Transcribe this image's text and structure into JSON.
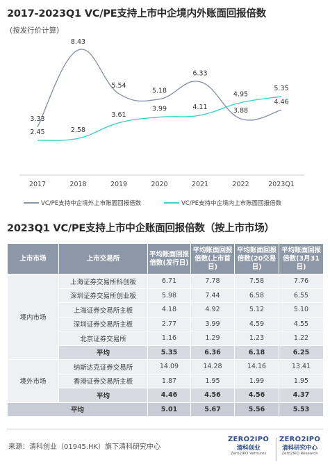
{
  "header": {
    "title": "2017-2023Q1 VC/PE支持上市中企境内外账面回报倍数",
    "subtitle": "(按发行价计算)"
  },
  "chart_data": {
    "type": "line",
    "categories": [
      "2017",
      "2018",
      "2019",
      "2020",
      "2021",
      "2022",
      "2023Q1"
    ],
    "series": [
      {
        "name": "VC/PE支持中企境外上市账面回报倍数",
        "color": "#8a93a8",
        "values": [
          3.33,
          8.43,
          5.54,
          5.18,
          6.33,
          3.88,
          4.46
        ]
      },
      {
        "name": "VC/PE支持中企境内上市账面回报倍数",
        "color": "#3fd4c6",
        "values": [
          2.45,
          2.58,
          3.61,
          3.99,
          4.11,
          4.95,
          5.35
        ]
      }
    ],
    "legend_position": "bottom",
    "grid": false
  },
  "table": {
    "title": "2023Q1 VC/PE支持上市中企账面回报倍数（按上市市场）",
    "headers": [
      "上市市场",
      "上市交易所",
      "平均账面回报倍数(发行日)",
      "平均账面回报倍数(上市首日)",
      "平均账面回报倍数(20交易日)",
      "平均账面回报倍数(3月31日)"
    ],
    "domestic": {
      "market": "境内市场",
      "rows": [
        {
          "exchange": "上海证券交易所科创板",
          "v": [
            "6.71",
            "7.78",
            "7.58",
            "7.76"
          ]
        },
        {
          "exchange": "深圳证券交易所创业板",
          "v": [
            "5.98",
            "7.44",
            "6.58",
            "6.55"
          ]
        },
        {
          "exchange": "上海证券交易所主板",
          "v": [
            "4.18",
            "4.92",
            "5.12",
            "5.10"
          ]
        },
        {
          "exchange": "深圳证券交易所主板",
          "v": [
            "2.77",
            "3.99",
            "4.59",
            "4.55"
          ]
        },
        {
          "exchange": "北京证券交易所",
          "v": [
            "1.16",
            "1.29",
            "1.23",
            "1.22"
          ]
        }
      ],
      "avg_label": "平均",
      "avg": [
        "5.35",
        "6.36",
        "6.18",
        "6.25"
      ]
    },
    "overseas": {
      "market": "境外市场",
      "rows": [
        {
          "exchange": "纳斯达克证券交易所",
          "v": [
            "14.09",
            "14.28",
            "14.16",
            "13.41"
          ]
        },
        {
          "exchange": "香港证券交易所主板",
          "v": [
            "1.87",
            "1.95",
            "1.99",
            "1.95"
          ]
        }
      ],
      "avg_label": "平均",
      "avg": [
        "4.46",
        "4.56",
        "4.56",
        "4.37"
      ]
    },
    "total": {
      "label": "平均",
      "v": [
        "5.01",
        "5.67",
        "5.56",
        "5.53"
      ]
    }
  },
  "footer": {
    "source": "来源：清科创业（01945.HK）旗下清科研究中心",
    "logo1": {
      "brand": "ZERO2IPO",
      "cn": "清科创业",
      "en": "Zero2IPO Ventures"
    },
    "logo2": {
      "brand": "ZERO2IPO",
      "cn": "清科研究中心",
      "en": "Zero2IPO Research"
    }
  }
}
